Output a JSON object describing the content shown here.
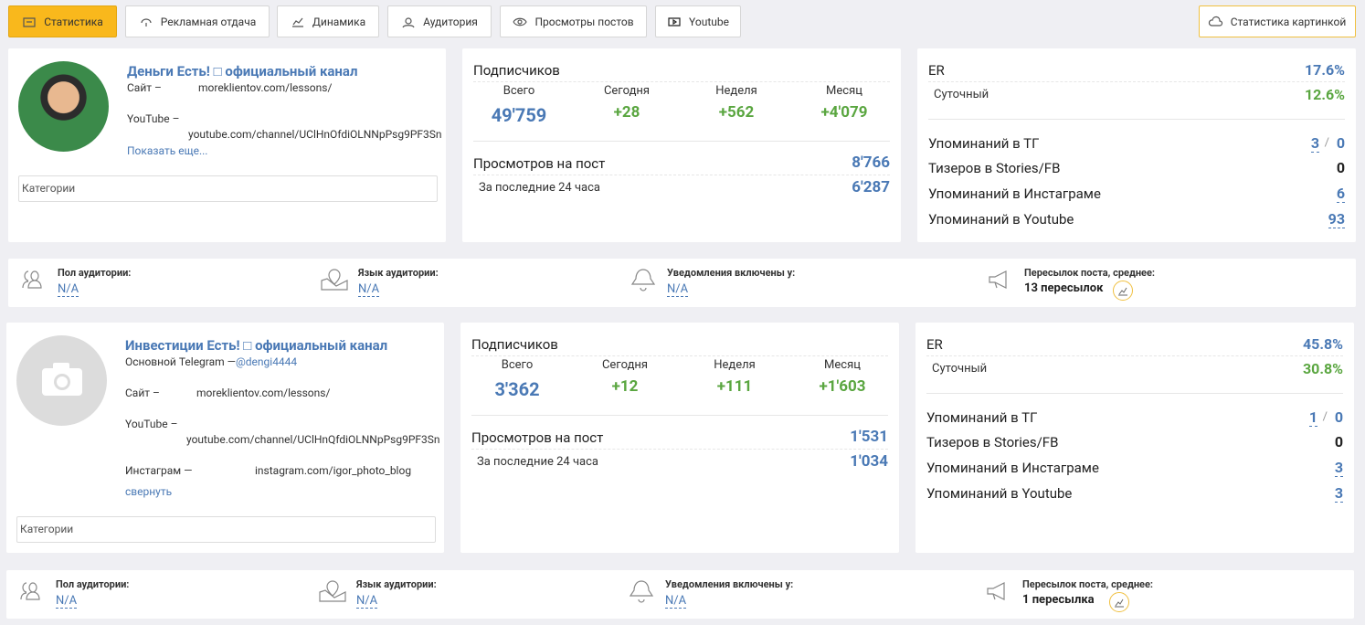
{
  "tabs": [
    "Статистика",
    "Рекламная отдача",
    "Динамика",
    "Аудитория",
    "Просмотры постов",
    "Youtube"
  ],
  "image_stats_button": "Статистика картинкой",
  "channels": [
    {
      "title": "Деньги Есть! □ официальный канал",
      "links": [
        {
          "label": "Сайт –",
          "value": "moreklientov.com/lessons/"
        },
        {
          "label": "YouTube –",
          "value": "youtube.com/channel/UClHnOfdiOLNNpPsg9PF3Sn"
        }
      ],
      "toggle": "Показать еще...",
      "categories": "Категории",
      "subscribers": {
        "title": "Подписчиков",
        "columns": [
          {
            "label": "Всего",
            "value": "49'759"
          },
          {
            "label": "Сегодня",
            "value": "+28"
          },
          {
            "label": "Неделя",
            "value": "+562"
          },
          {
            "label": "Месяц",
            "value": "+4'079"
          }
        ]
      },
      "views": {
        "title": "Просмотров на пост",
        "value": "8'766",
        "sub_label": "За последние 24 часа",
        "sub_value": "6'287"
      },
      "er": {
        "label": "ER",
        "value": "17.6%",
        "daily_label": "Суточный",
        "daily_value": "12.6%"
      },
      "mentions": [
        {
          "label": "Упоминаний в ТГ",
          "value": "3",
          "extra": "0"
        },
        {
          "label": "Тизеров в Stories/FB",
          "value": "0"
        },
        {
          "label": "Упоминаний в Инстаграме",
          "value": "6"
        },
        {
          "label": "Упоминаний в Youtube",
          "value": "93"
        }
      ],
      "audience": [
        {
          "label": "Пол аудитории:",
          "value": "N/A"
        },
        {
          "label": "Язык аудитории:",
          "value": "N/A"
        },
        {
          "label": "Уведомления включены у:",
          "value": "N/A"
        },
        {
          "label": "Пересылок поста, среднее:",
          "value": "13 пересылок"
        }
      ]
    },
    {
      "title": "Инвестиции Есть! □ официальный канал",
      "links": [
        {
          "label": "Основной Telegram —",
          "value": "@dengi4444"
        },
        {
          "label": "Сайт –",
          "value": "moreklientov.com/lessons/"
        },
        {
          "label": "YouTube –",
          "value": "youtube.com/channel/UClHnQfdiOLNNpPsg9PF3Sn"
        },
        {
          "label": "Инстаграм —",
          "value": "instagram.com/igor_photo_blog"
        }
      ],
      "toggle": "свернуть",
      "categories": "Категории",
      "subscribers": {
        "title": "Подписчиков",
        "columns": [
          {
            "label": "Всего",
            "value": "3'362"
          },
          {
            "label": "Сегодня",
            "value": "+12"
          },
          {
            "label": "Неделя",
            "value": "+111"
          },
          {
            "label": "Месяц",
            "value": "+1'603"
          }
        ]
      },
      "views": {
        "title": "Просмотров на пост",
        "value": "1'531",
        "sub_label": "За последние 24 часа",
        "sub_value": "1'034"
      },
      "er": {
        "label": "ER",
        "value": "45.8%",
        "daily_label": "Суточный",
        "daily_value": "30.8%"
      },
      "mentions": [
        {
          "label": "Упоминаний в ТГ",
          "value": "1",
          "extra": "0"
        },
        {
          "label": "Тизеров в Stories/FB",
          "value": "0"
        },
        {
          "label": "Упоминаний в Инстаграме",
          "value": "3"
        },
        {
          "label": "Упоминаний в Youtube",
          "value": "3"
        }
      ],
      "audience": [
        {
          "label": "Пол аудитории:",
          "value": "N/A"
        },
        {
          "label": "Язык аудитории:",
          "value": "N/A"
        },
        {
          "label": "Уведомления включены у:",
          "value": "N/A"
        },
        {
          "label": "Пересылок поста, среднее:",
          "value": "1 пересылка"
        }
      ]
    }
  ]
}
